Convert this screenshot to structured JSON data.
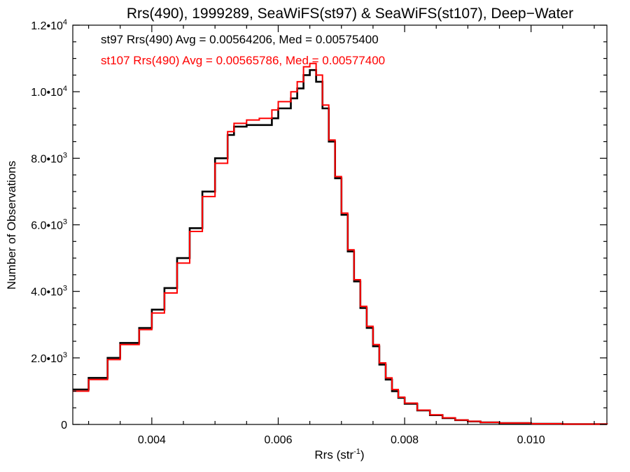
{
  "chart_data": {
    "type": "line",
    "step": true,
    "title": "Rrs(490), 1999289, SeaWiFS(st97) & SeaWiFS(st107), Deep−Water",
    "xlabel": "Rrs (str",
    "xlabel_sup": "-1",
    "xlabel_suffix": ")",
    "ylabel": "Number of Observations",
    "xlim": [
      0.00275,
      0.0112
    ],
    "ylim": [
      0,
      12000
    ],
    "x_ticks": [
      {
        "value": 0.004,
        "label": "0.004"
      },
      {
        "value": 0.006,
        "label": "0.006"
      },
      {
        "value": 0.008,
        "label": "0.008"
      },
      {
        "value": 0.01,
        "label": "0.010"
      }
    ],
    "y_ticks": [
      {
        "value": 0,
        "label": "0",
        "sup": ""
      },
      {
        "value": 2000,
        "label": "2.0•10",
        "sup": "3"
      },
      {
        "value": 4000,
        "label": "4.0•10",
        "sup": "3"
      },
      {
        "value": 6000,
        "label": "6.0•10",
        "sup": "3"
      },
      {
        "value": 8000,
        "label": "8.0•10",
        "sup": "3"
      },
      {
        "value": 10000,
        "label": "1.0•10",
        "sup": "4"
      },
      {
        "value": 12000,
        "label": "1.2•10",
        "sup": "4"
      }
    ],
    "legend": [
      {
        "text": "st97 Rrs(490) Avg = 0.00564206, Med = 0.00575400",
        "color": "#000000"
      },
      {
        "text": "st107 Rrs(490) Avg = 0.00565786, Med = 0.00577400",
        "color": "#ff0000"
      }
    ],
    "series": [
      {
        "color": "#000000",
        "x": [
          0.00275,
          0.003,
          0.0033,
          0.0035,
          0.0038,
          0.004,
          0.0042,
          0.0044,
          0.0046,
          0.0048,
          0.005,
          0.0052,
          0.0053,
          0.0055,
          0.0057,
          0.0059,
          0.006,
          0.0062,
          0.0063,
          0.0064,
          0.0065,
          0.0066,
          0.0067,
          0.0068,
          0.0069,
          0.007,
          0.0071,
          0.0072,
          0.0073,
          0.0074,
          0.0075,
          0.0076,
          0.0077,
          0.0078,
          0.0079,
          0.008,
          0.0082,
          0.0084,
          0.0086,
          0.0088,
          0.009,
          0.0092,
          0.0095,
          0.01,
          0.0105,
          0.0112
        ],
        "y": [
          1050,
          1400,
          2000,
          2450,
          2900,
          3450,
          4100,
          5000,
          5900,
          7000,
          8000,
          8700,
          8950,
          9000,
          9000,
          9200,
          9500,
          9800,
          10100,
          10500,
          10650,
          10300,
          9500,
          8500,
          7400,
          6300,
          5200,
          4300,
          3500,
          2900,
          2350,
          1800,
          1350,
          1000,
          800,
          620,
          420,
          280,
          190,
          130,
          90,
          60,
          40,
          20,
          10,
          5
        ]
      },
      {
        "color": "#ff0000",
        "x": [
          0.00275,
          0.003,
          0.0033,
          0.0035,
          0.0038,
          0.004,
          0.0042,
          0.0044,
          0.0046,
          0.0048,
          0.005,
          0.0052,
          0.0053,
          0.0055,
          0.0057,
          0.0059,
          0.006,
          0.0062,
          0.0063,
          0.0064,
          0.0065,
          0.0066,
          0.0067,
          0.0068,
          0.0069,
          0.007,
          0.0071,
          0.0072,
          0.0073,
          0.0074,
          0.0075,
          0.0076,
          0.0077,
          0.0078,
          0.0079,
          0.008,
          0.0082,
          0.0084,
          0.0086,
          0.0088,
          0.009,
          0.0092,
          0.0095,
          0.01,
          0.0105,
          0.0112
        ],
        "y": [
          1000,
          1350,
          1950,
          2400,
          2850,
          3350,
          3950,
          4850,
          5800,
          6850,
          7850,
          8800,
          9050,
          9150,
          9200,
          9450,
          9700,
          10000,
          10300,
          10750,
          10850,
          10500,
          9600,
          8550,
          7450,
          6350,
          5250,
          4350,
          3550,
          2950,
          2400,
          1850,
          1400,
          1050,
          820,
          640,
          430,
          290,
          200,
          135,
          95,
          62,
          42,
          22,
          11,
          5
        ]
      }
    ]
  }
}
